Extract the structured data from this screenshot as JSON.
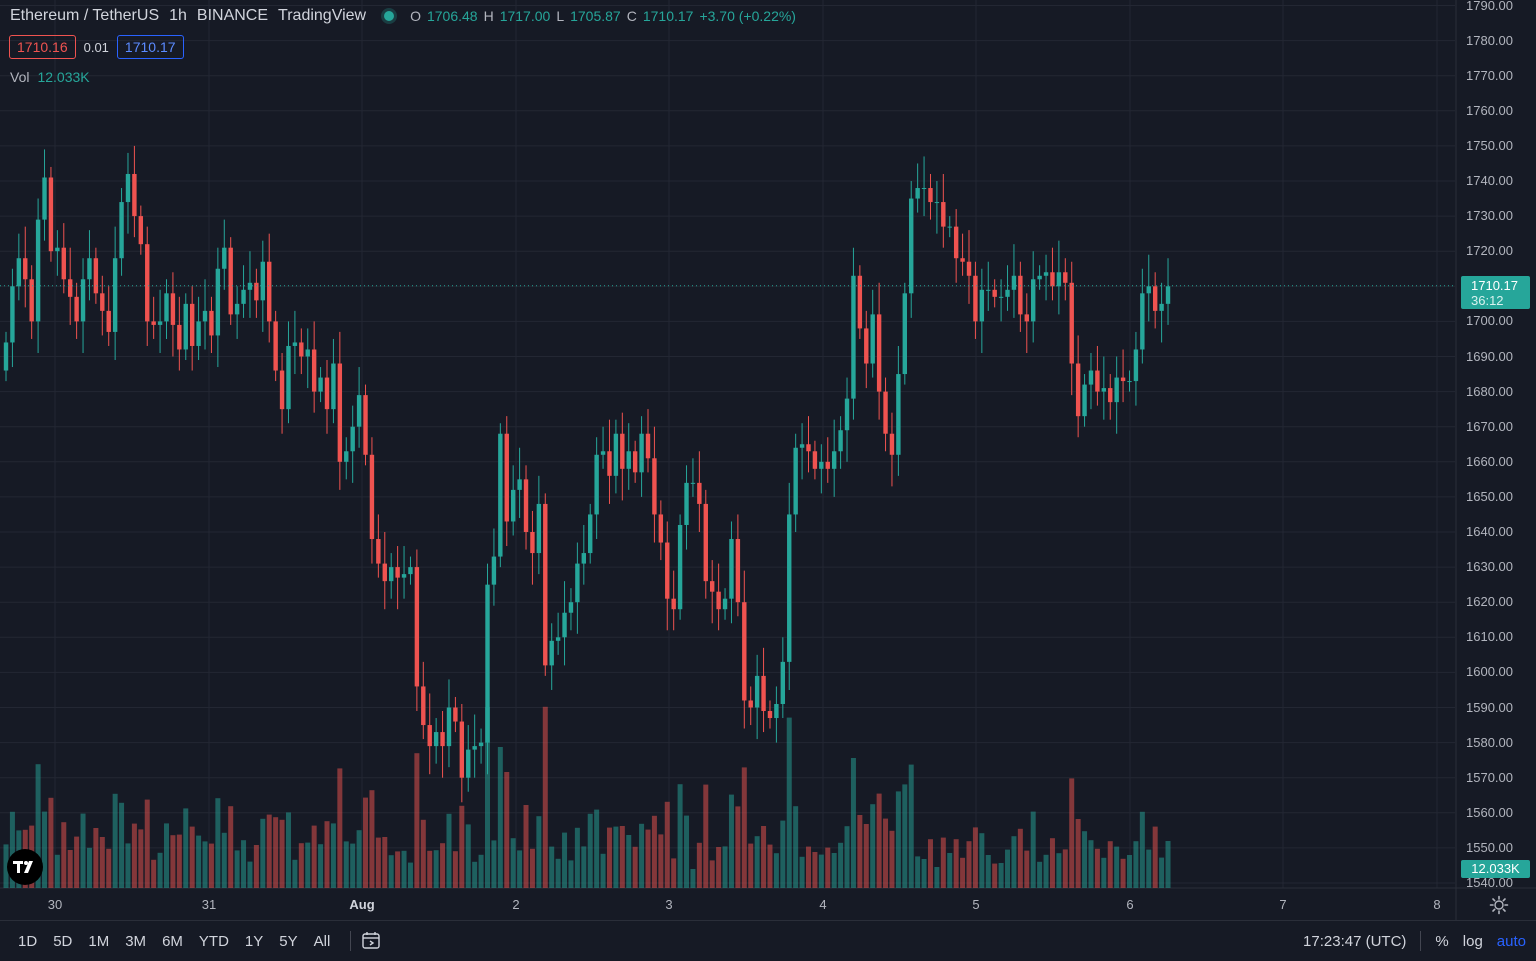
{
  "header": {
    "symbol": "Ethereum / TetherUS",
    "interval": "1h",
    "exchange": "BINANCE",
    "source": "TradingView",
    "ohlc": {
      "o_label": "O",
      "o": "1706.48",
      "h_label": "H",
      "h": "1717.00",
      "l_label": "L",
      "l": "1705.87",
      "c_label": "C",
      "c": "1710.17",
      "change": "+3.70 (+0.22%)"
    },
    "sell_price": "1710.16",
    "spread": "0.01",
    "buy_price": "1710.17",
    "vol_label": "Vol",
    "vol_value": "12.033K"
  },
  "price_axis": {
    "labels": [
      "1790.00",
      "1780.00",
      "1770.00",
      "1760.00",
      "1750.00",
      "1740.00",
      "1730.00",
      "1720.00",
      "1710.00",
      "1700.00",
      "1690.00",
      "1680.00",
      "1670.00",
      "1660.00",
      "1650.00",
      "1640.00",
      "1630.00",
      "1620.00",
      "1610.00",
      "1600.00",
      "1590.00",
      "1580.00",
      "1570.00",
      "1560.00",
      "1550.00",
      "1540.00"
    ],
    "last_price": "1710.17",
    "countdown": "36:12",
    "volume_tag": "12.033K"
  },
  "time_axis": {
    "labels": [
      {
        "text": "30",
        "bold": false
      },
      {
        "text": "31",
        "bold": false
      },
      {
        "text": "Aug",
        "bold": true
      },
      {
        "text": "2",
        "bold": false
      },
      {
        "text": "3",
        "bold": false
      },
      {
        "text": "4",
        "bold": false
      },
      {
        "text": "5",
        "bold": false
      },
      {
        "text": "6",
        "bold": false
      },
      {
        "text": "7",
        "bold": false
      },
      {
        "text": "8",
        "bold": false
      }
    ]
  },
  "bottom_bar": {
    "ranges": [
      "1D",
      "5D",
      "1M",
      "3M",
      "6M",
      "YTD",
      "1Y",
      "5Y",
      "All"
    ],
    "time": "17:23:47 (UTC)",
    "percent_label": "%",
    "log_label": "log",
    "auto_label": "auto"
  },
  "colors": {
    "up": "#26a69a",
    "down": "#ef5350",
    "background": "#161a25",
    "grid": "#232733"
  },
  "chart_data": {
    "type": "candlestick",
    "title": "Ethereum / TetherUS",
    "interval": "1h",
    "ylim": [
      1540,
      1790
    ],
    "x_ticks": [
      "30",
      "31",
      "Aug",
      "2",
      "3",
      "4",
      "5",
      "6",
      "7",
      "8"
    ],
    "close": [
      1694,
      1710,
      1718,
      1712,
      1700,
      1729,
      1741,
      1720,
      1721,
      1712,
      1707,
      1700,
      1712,
      1718,
      1708,
      1703,
      1697,
      1718,
      1734,
      1742,
      1730,
      1722,
      1700,
      1699,
      1700,
      1708,
      1699,
      1692,
      1705,
      1693,
      1700,
      1703,
      1696,
      1715,
      1721,
      1702,
      1705,
      1709,
      1711,
      1706,
      1717,
      1700,
      1686,
      1675,
      1693,
      1694,
      1690,
      1692,
      1680,
      1684,
      1675,
      1688,
      1660,
      1663,
      1670,
      1679,
      1662,
      1638,
      1631,
      1626,
      1630,
      1627,
      1628,
      1630,
      1596,
      1585,
      1579,
      1583,
      1579,
      1590,
      1586,
      1570,
      1578,
      1579,
      1580,
      1625,
      1633,
      1668,
      1643,
      1652,
      1655,
      1640,
      1634,
      1648,
      1602,
      1609,
      1610,
      1617,
      1620,
      1631,
      1634,
      1645,
      1662,
      1663,
      1656,
      1668,
      1658,
      1663,
      1657,
      1668,
      1661,
      1645,
      1637,
      1621,
      1618,
      1642,
      1654,
      1654,
      1648,
      1626,
      1623,
      1618,
      1621,
      1638,
      1620,
      1592,
      1590,
      1599,
      1589,
      1587,
      1591,
      1603,
      1645,
      1664,
      1665,
      1663,
      1658,
      1660,
      1658,
      1663,
      1669,
      1678,
      1713,
      1698,
      1688,
      1702,
      1680,
      1668,
      1662,
      1685,
      1708,
      1735,
      1738,
      1738,
      1734,
      1734,
      1727,
      1727,
      1718,
      1717,
      1713,
      1700,
      1709,
      1709,
      1707,
      1707,
      1709,
      1713,
      1702,
      1700,
      1712,
      1713,
      1714,
      1710,
      1714,
      1711,
      1688,
      1673,
      1682,
      1686,
      1680,
      1681,
      1677,
      1684,
      1683,
      1683,
      1692,
      1708,
      1710,
      1703,
      1705,
      1710
    ]
  }
}
